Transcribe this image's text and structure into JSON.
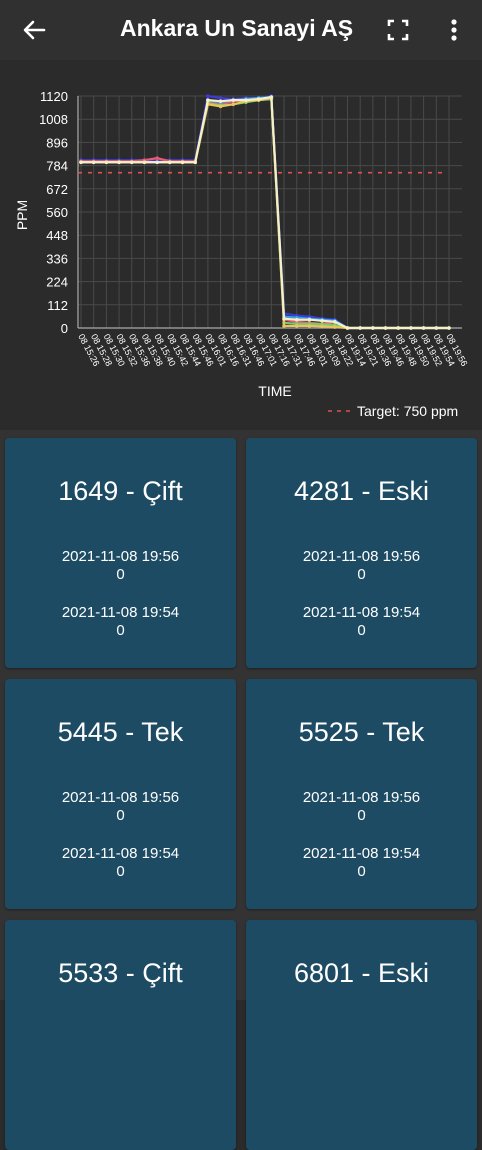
{
  "app": {
    "title": "Ankara Un Sanayi AŞ"
  },
  "chart_data": {
    "type": "line",
    "ylabel": "PPM",
    "xlabel": "TIME",
    "ylim": [
      0,
      1120
    ],
    "yticks": [
      0,
      112,
      224,
      336,
      448,
      560,
      672,
      784,
      896,
      1008,
      1120
    ],
    "x": [
      "08 15:26",
      "08 15:28",
      "08 15:30",
      "08 15:32",
      "08 15:36",
      "08 15:38",
      "08 15:40",
      "08 15:42",
      "08 15:44",
      "08 15:46",
      "08 16:01",
      "08 16:16",
      "08 16:31",
      "08 16:46",
      "08 17:01",
      "08 17:16",
      "08 17:31",
      "08 17:46",
      "08 18:01",
      "08 18:09",
      "08 18:22",
      "08 19:14",
      "08 19:21",
      "08 19:36",
      "08 19:46",
      "08 19:48",
      "08 19:50",
      "08 19:52",
      "08 19:54",
      "08 19:56"
    ],
    "target": 750,
    "legend": "Target: 750 ppm",
    "grid": true,
    "series": [
      {
        "color": "#3b3bd9",
        "values": [
          810,
          810,
          810,
          810,
          810,
          810,
          810,
          810,
          810,
          810,
          1120,
          1110,
          1105,
          1110,
          1110,
          1120,
          70,
          60,
          55,
          45,
          40,
          0,
          0,
          0,
          0,
          0,
          0,
          0,
          0,
          0
        ]
      },
      {
        "color": "#e85a7a",
        "values": [
          805,
          805,
          805,
          805,
          805,
          810,
          820,
          805,
          805,
          805,
          1090,
          1080,
          1095,
          1100,
          1105,
          1110,
          40,
          30,
          25,
          20,
          30,
          0,
          0,
          0,
          0,
          0,
          0,
          0,
          0,
          0
        ]
      },
      {
        "color": "#3aa0e0",
        "values": [
          800,
          800,
          800,
          800,
          800,
          800,
          800,
          800,
          800,
          800,
          1100,
          1090,
          1100,
          1105,
          1110,
          1115,
          55,
          50,
          45,
          40,
          35,
          0,
          0,
          0,
          0,
          0,
          0,
          0,
          0,
          0
        ]
      },
      {
        "color": "#7bc96f",
        "values": [
          800,
          800,
          800,
          800,
          800,
          800,
          800,
          800,
          800,
          800,
          1085,
          1075,
          1080,
          1090,
          1100,
          1105,
          25,
          20,
          20,
          18,
          15,
          0,
          0,
          0,
          0,
          0,
          0,
          0,
          0,
          0
        ]
      },
      {
        "color": "#e8c45a",
        "values": [
          800,
          800,
          800,
          800,
          800,
          800,
          800,
          800,
          800,
          800,
          1080,
          1070,
          1080,
          1095,
          1100,
          1110,
          10,
          10,
          10,
          8,
          5,
          0,
          0,
          0,
          0,
          0,
          0,
          0,
          0,
          0
        ]
      },
      {
        "color": "#f5f0c8",
        "values": [
          800,
          800,
          800,
          800,
          800,
          800,
          800,
          800,
          800,
          800,
          1100,
          1095,
          1100,
          1100,
          1105,
          1115,
          45,
          40,
          40,
          35,
          30,
          0,
          0,
          0,
          0,
          0,
          0,
          0,
          0,
          0
        ]
      }
    ]
  },
  "cards": [
    {
      "name": "1649 - Çift",
      "time1": "2021-11-08 19:56",
      "val1": "0",
      "time2": "2021-11-08 19:54",
      "val2": "0"
    },
    {
      "name": "4281 - Eski",
      "time1": "2021-11-08 19:56",
      "val1": "0",
      "time2": "2021-11-08 19:54",
      "val2": "0"
    },
    {
      "name": "5445 - Tek",
      "time1": "2021-11-08 19:56",
      "val1": "0",
      "time2": "2021-11-08 19:54",
      "val2": "0"
    },
    {
      "name": "5525 - Tek",
      "time1": "2021-11-08 19:56",
      "val1": "0",
      "time2": "2021-11-08 19:54",
      "val2": "0"
    },
    {
      "name": "5533 - Çift"
    },
    {
      "name": "6801 - Eski"
    }
  ]
}
